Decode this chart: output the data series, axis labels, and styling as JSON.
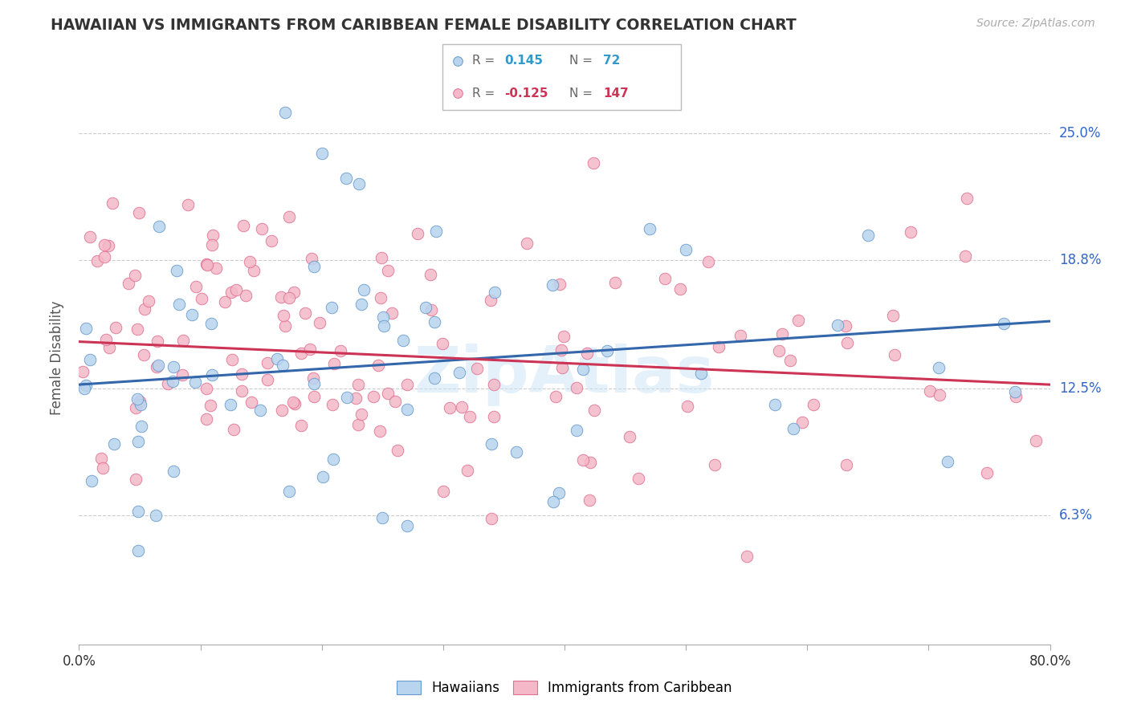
{
  "title": "HAWAIIAN VS IMMIGRANTS FROM CARIBBEAN FEMALE DISABILITY CORRELATION CHART",
  "source": "Source: ZipAtlas.com",
  "ylabel": "Female Disability",
  "ytick_labels": [
    "25.0%",
    "18.8%",
    "12.5%",
    "6.3%"
  ],
  "ytick_values": [
    0.25,
    0.188,
    0.125,
    0.063
  ],
  "watermark": "ZipAtlas",
  "hawaiians_color": "#b8d4ee",
  "hawaiians_edge": "#6699cc",
  "caribbean_color": "#f4b8c8",
  "caribbean_edge": "#e07090",
  "trend_hawaiians_color": "#3366aa",
  "trend_caribbean_color": "#cc3355",
  "legend_R1": "0.145",
  "legend_N1": "72",
  "legend_R2": "-0.125",
  "legend_N2": "147",
  "legend_color1": "#3399cc",
  "legend_color2": "#cc3355",
  "xmin": 0.0,
  "xmax": 0.8,
  "ymin": 0.0,
  "ymax": 0.28,
  "haw_trend_x0": 0.0,
  "haw_trend_y0": 0.127,
  "haw_trend_x1": 0.8,
  "haw_trend_y1": 0.158,
  "car_trend_x0": 0.0,
  "car_trend_y0": 0.148,
  "car_trend_x1": 0.8,
  "car_trend_y1": 0.127
}
